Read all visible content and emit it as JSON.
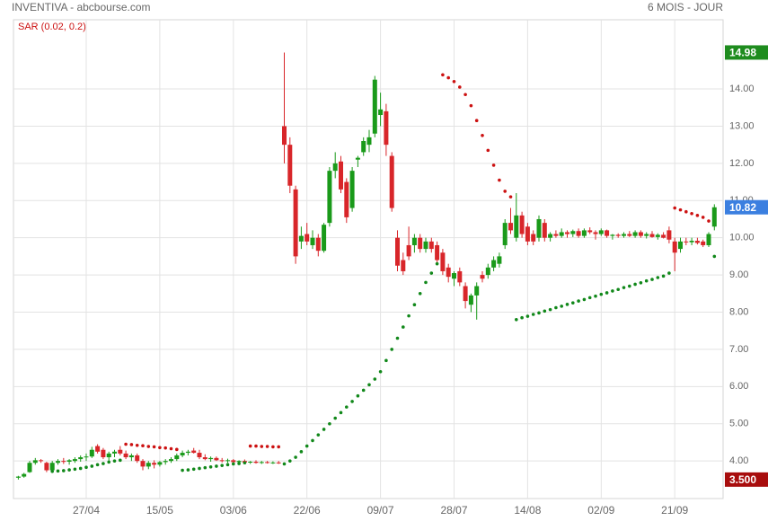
{
  "chart_data": {
    "type": "candlestick",
    "title": "INVENTIVA - abcbourse.com",
    "period": "6 MOIS - JOUR",
    "up_color": "#1a9a1a",
    "down_color": "#d8262a",
    "grid": true,
    "ylim": [
      2.99,
      15.86
    ],
    "yticks": [
      {
        "value": 4,
        "label": "4.00"
      },
      {
        "value": 5,
        "label": "5.00"
      },
      {
        "value": 6,
        "label": "6.00"
      },
      {
        "value": 7,
        "label": "7.00"
      },
      {
        "value": 8,
        "label": "8.00"
      },
      {
        "value": 9,
        "label": "9.00"
      },
      {
        "value": 10,
        "label": "10.00"
      },
      {
        "value": 11,
        "label": "11.00"
      },
      {
        "value": 12,
        "label": "12.00"
      },
      {
        "value": 13,
        "label": "13.00"
      },
      {
        "value": 14,
        "label": "14.00"
      }
    ],
    "categories": [
      null,
      null,
      null,
      null,
      null,
      null,
      null,
      null,
      null,
      null,
      null,
      null,
      "27/04",
      null,
      null,
      null,
      null,
      null,
      null,
      null,
      null,
      null,
      null,
      null,
      null,
      "15/05",
      null,
      null,
      null,
      null,
      null,
      null,
      null,
      null,
      null,
      null,
      null,
      null,
      "03/06",
      null,
      null,
      null,
      null,
      null,
      null,
      null,
      null,
      null,
      null,
      null,
      null,
      "22/06",
      null,
      null,
      null,
      null,
      null,
      null,
      null,
      null,
      null,
      null,
      null,
      null,
      "09/07",
      null,
      null,
      null,
      null,
      null,
      null,
      null,
      null,
      null,
      null,
      null,
      null,
      "28/07",
      null,
      null,
      null,
      null,
      null,
      null,
      null,
      null,
      null,
      null,
      null,
      null,
      "14/08",
      null,
      null,
      null,
      null,
      null,
      null,
      null,
      null,
      null,
      null,
      null,
      null,
      "02/09",
      null,
      null,
      null,
      null,
      null,
      null,
      null,
      null,
      null,
      null,
      null,
      null,
      "21/09",
      null,
      null,
      null,
      null,
      null,
      null,
      null
    ],
    "open": [
      3.55,
      3.58,
      3.7,
      3.95,
      4.02,
      3.95,
      3.75,
      3.95,
      4.0,
      3.98,
      4.0,
      4.05,
      4.1,
      4.12,
      4.4,
      4.3,
      4.1,
      4.2,
      4.3,
      4.2,
      4.1,
      4.15,
      4.0,
      3.85,
      3.95,
      3.9,
      3.97,
      4.0,
      4.05,
      4.15,
      4.22,
      4.28,
      4.22,
      4.1,
      4.05,
      4.08,
      4.02,
      4.0,
      4.02,
      3.97,
      4.0,
      3.96,
      3.98,
      3.95,
      3.97,
      3.95,
      3.96,
      13.0,
      12.5,
      11.3,
      9.9,
      10.1,
      9.8,
      10.0,
      9.65,
      10.4,
      11.8,
      12.05,
      11.5,
      10.8,
      12.1,
      12.3,
      12.5,
      12.8,
      13.3,
      13.4,
      12.2,
      10.0,
      9.4,
      9.8,
      9.8,
      10.0,
      9.7,
      9.9,
      9.8,
      9.6,
      9.2,
      8.9,
      9.1,
      8.7,
      8.2,
      8.45,
      9.0,
      9.0,
      9.2,
      9.3,
      9.8,
      10.4,
      10.0,
      10.6,
      10.3,
      10.1,
      10.0,
      10.4,
      10.0,
      10.1,
      10.05,
      10.15,
      10.1,
      10.18,
      10.05,
      10.2,
      10.15,
      10.1,
      10.2,
      10.05,
      10.08,
      10.05,
      10.1,
      10.05,
      10.15,
      10.05,
      10.1,
      10.02,
      10.08,
      10.2,
      9.9,
      9.7,
      9.9,
      9.88,
      9.92,
      9.9,
      9.8,
      10.3
    ],
    "high": [
      3.6,
      3.68,
      4.0,
      4.08,
      4.05,
      3.98,
      4.0,
      4.05,
      4.08,
      4.05,
      4.1,
      4.15,
      4.2,
      4.38,
      4.45,
      4.35,
      4.25,
      4.3,
      4.4,
      4.28,
      4.2,
      4.2,
      4.05,
      4.0,
      4.02,
      4.0,
      4.05,
      4.1,
      4.2,
      4.28,
      4.3,
      4.35,
      4.3,
      4.18,
      4.12,
      4.12,
      4.08,
      4.06,
      4.05,
      4.02,
      4.04,
      4.0,
      4.02,
      4.0,
      4.0,
      3.99,
      4.0,
      14.98,
      12.7,
      11.4,
      10.3,
      10.4,
      10.2,
      10.1,
      10.4,
      11.9,
      12.3,
      12.2,
      11.6,
      11.9,
      12.2,
      12.7,
      12.9,
      14.35,
      13.9,
      13.6,
      12.3,
      10.2,
      9.6,
      10.3,
      10.1,
      10.1,
      10.0,
      10.0,
      9.9,
      9.7,
      9.3,
      9.1,
      9.2,
      8.8,
      8.5,
      8.8,
      9.1,
      9.3,
      9.5,
      9.6,
      10.5,
      10.8,
      11.2,
      10.7,
      10.4,
      10.2,
      10.6,
      10.5,
      10.15,
      10.2,
      10.25,
      10.2,
      10.22,
      10.25,
      10.25,
      10.28,
      10.2,
      10.25,
      10.22,
      10.1,
      10.12,
      10.15,
      10.18,
      10.2,
      10.2,
      10.15,
      10.18,
      10.12,
      10.15,
      10.3,
      10.0,
      10.0,
      10.0,
      10.0,
      10.0,
      9.95,
      10.15,
      10.9
    ],
    "low": [
      3.5,
      3.55,
      3.68,
      3.9,
      3.95,
      3.7,
      3.72,
      3.9,
      3.92,
      3.9,
      3.95,
      3.98,
      4.0,
      4.08,
      4.2,
      4.05,
      4.0,
      4.1,
      4.15,
      4.05,
      4.0,
      3.95,
      3.75,
      3.78,
      3.8,
      3.85,
      3.9,
      3.95,
      4.0,
      4.1,
      4.15,
      4.2,
      4.05,
      4.02,
      3.98,
      4.0,
      3.96,
      3.95,
      3.94,
      3.92,
      3.93,
      3.92,
      3.93,
      3.92,
      3.93,
      3.92,
      3.92,
      12.0,
      11.2,
      9.3,
      9.7,
      9.8,
      9.7,
      9.5,
      9.6,
      10.3,
      11.6,
      11.2,
      10.4,
      10.7,
      11.9,
      12.2,
      12.3,
      12.7,
      13.0,
      12.2,
      10.7,
      9.1,
      9.0,
      9.4,
      9.6,
      9.6,
      9.6,
      9.6,
      9.3,
      9.0,
      8.8,
      8.7,
      8.7,
      8.1,
      8.0,
      7.8,
      8.8,
      8.9,
      9.1,
      9.2,
      9.7,
      10.1,
      9.9,
      10.0,
      9.8,
      9.8,
      9.9,
      9.9,
      9.9,
      10.0,
      10.0,
      10.0,
      10.02,
      10.0,
      10.0,
      10.1,
      9.95,
      10.05,
      10.0,
      9.95,
      10.0,
      10.0,
      10.02,
      10.0,
      10.0,
      9.98,
      10.0,
      9.95,
      9.98,
      9.85,
      9.1,
      9.6,
      9.8,
      9.8,
      9.82,
      9.75,
      9.75,
      10.2
    ],
    "close": [
      3.58,
      3.65,
      3.95,
      4.02,
      4.0,
      3.75,
      3.95,
      4.0,
      3.98,
      4.02,
      4.05,
      4.1,
      4.12,
      4.3,
      4.25,
      4.1,
      4.2,
      4.25,
      4.2,
      4.1,
      4.15,
      4.0,
      3.85,
      3.95,
      3.9,
      3.97,
      4.0,
      4.05,
      4.15,
      4.22,
      4.25,
      4.22,
      4.1,
      4.05,
      4.08,
      4.02,
      4.0,
      4.02,
      3.97,
      4.0,
      3.96,
      3.98,
      3.95,
      3.97,
      3.95,
      3.96,
      3.94,
      12.5,
      11.4,
      9.5,
      10.05,
      9.9,
      10.0,
      9.65,
      10.35,
      11.8,
      12.0,
      11.3,
      10.55,
      11.8,
      12.15,
      12.6,
      12.7,
      14.25,
      13.45,
      12.5,
      10.8,
      9.25,
      9.1,
      9.5,
      10.0,
      9.7,
      9.9,
      9.7,
      9.4,
      9.1,
      8.95,
      9.05,
      8.8,
      8.3,
      8.45,
      8.7,
      8.9,
      9.2,
      9.4,
      9.5,
      10.4,
      10.2,
      10.6,
      10.1,
      9.9,
      9.9,
      10.5,
      10.0,
      10.1,
      10.05,
      10.15,
      10.1,
      10.18,
      10.05,
      10.2,
      10.15,
      10.1,
      10.2,
      10.05,
      10.08,
      10.05,
      10.1,
      10.05,
      10.15,
      10.05,
      10.1,
      10.02,
      10.08,
      10.0,
      9.95,
      9.6,
      9.9,
      9.88,
      9.92,
      9.86,
      9.8,
      10.1,
      10.82
    ],
    "sar": {
      "name": "SAR (0.02, 0.2)",
      "above_color": "#cc1111",
      "below_color": "#11881a",
      "values": [
        null,
        null,
        null,
        null,
        null,
        null,
        3.72,
        3.73,
        3.74,
        3.76,
        3.78,
        3.8,
        3.83,
        3.86,
        3.9,
        3.93,
        3.97,
        4.0,
        4.02,
        4.45,
        4.44,
        4.42,
        4.41,
        4.39,
        4.38,
        4.36,
        4.35,
        4.33,
        4.31,
        3.75,
        3.76,
        3.78,
        3.8,
        3.82,
        3.84,
        3.86,
        3.88,
        3.9,
        3.92,
        3.93,
        3.95,
        4.4,
        4.4,
        4.39,
        4.39,
        4.38,
        4.38,
        3.92,
        4.0,
        4.1,
        4.25,
        4.4,
        4.55,
        4.7,
        4.85,
        5.0,
        5.15,
        5.3,
        5.45,
        5.6,
        5.75,
        5.9,
        6.05,
        6.2,
        6.4,
        6.7,
        7.0,
        7.3,
        7.6,
        7.9,
        8.2,
        8.5,
        8.8,
        9.05,
        9.3,
        14.38,
        14.3,
        14.2,
        14.05,
        13.85,
        13.55,
        13.15,
        12.75,
        12.35,
        11.95,
        11.55,
        11.25,
        11.1,
        7.8,
        7.85,
        7.89,
        7.94,
        7.98,
        8.03,
        8.07,
        8.12,
        8.16,
        8.21,
        8.25,
        8.3,
        8.34,
        8.39,
        8.43,
        8.48,
        8.52,
        8.57,
        8.61,
        8.66,
        8.7,
        8.75,
        8.79,
        8.84,
        8.88,
        8.93,
        8.97,
        9.05,
        10.8,
        10.75,
        10.7,
        10.65,
        10.6,
        10.55,
        10.45,
        9.5
      ]
    },
    "max_label": {
      "value": 14.98,
      "color": "#1e8c1e"
    },
    "last_label": {
      "value": 10.82,
      "color": "#3b7fe0"
    },
    "min_label": {
      "value": 3.5,
      "label": "3.500",
      "color": "#a80d0d"
    }
  }
}
